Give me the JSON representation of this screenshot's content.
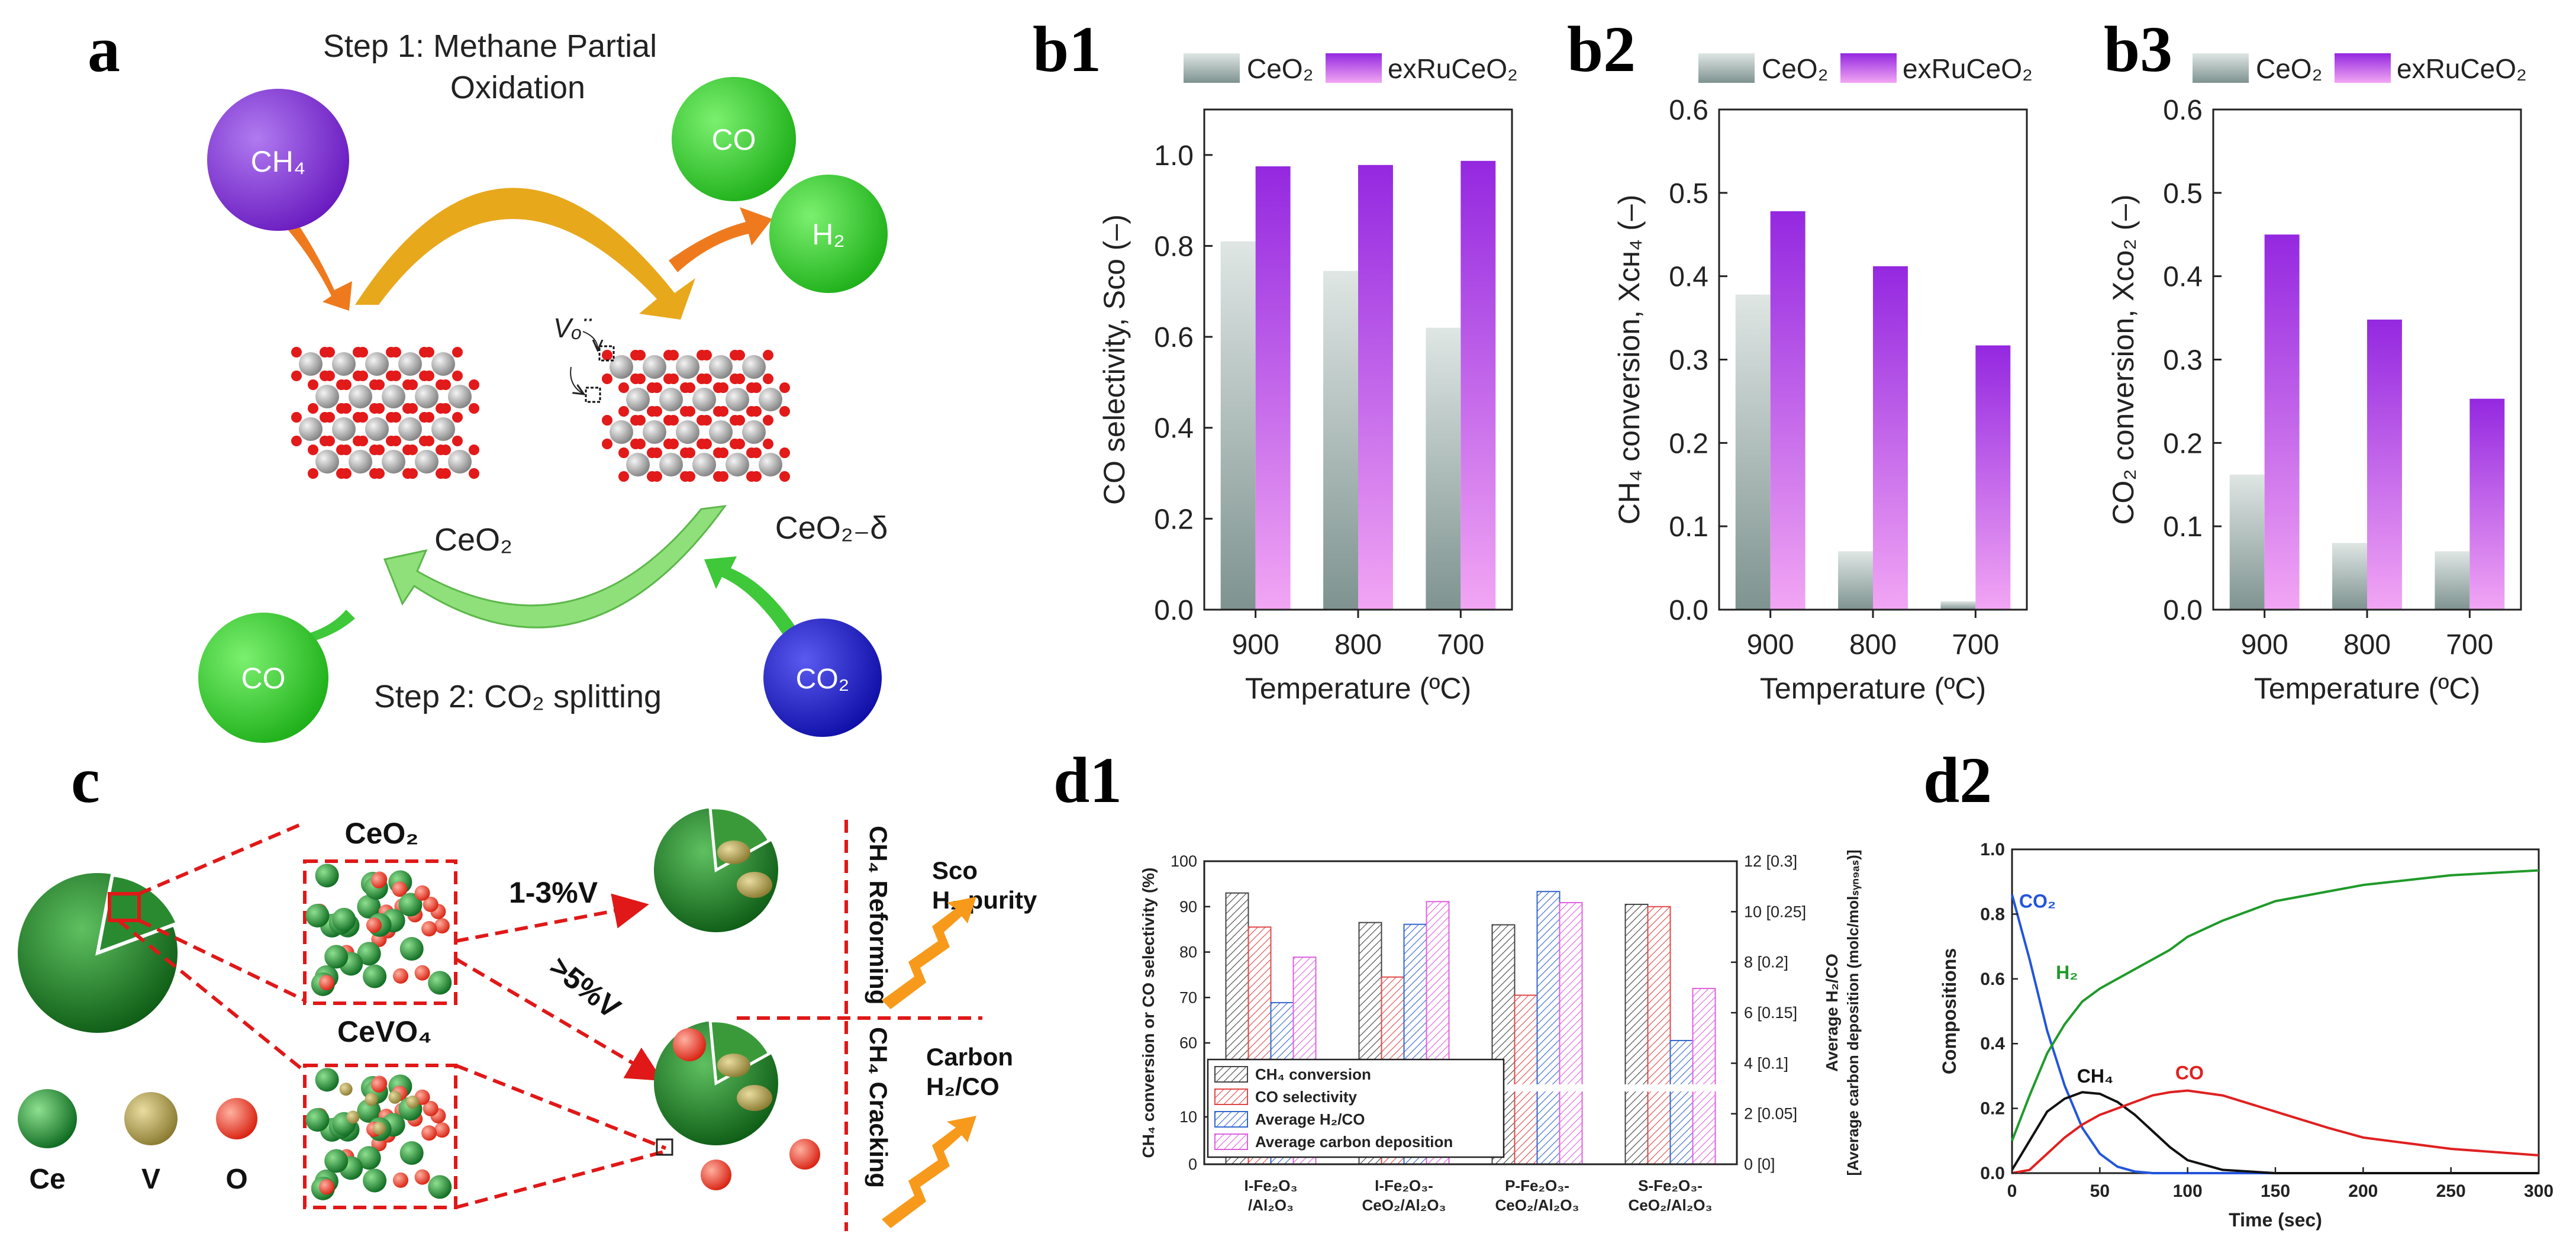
{
  "panels": {
    "a": "a",
    "b1": "b1",
    "b2": "b2",
    "b3": "b3",
    "c": "c",
    "d1": "d1",
    "d2": "d2"
  },
  "panel_a": {
    "step1_line1": "Step 1: Methane Partial",
    "step1_line2": "Oxidation",
    "step2": "Step 2: CO₂ splitting",
    "ch4": "CH₄",
    "co_top": "CO",
    "h2": "H₂",
    "co_bottom": "CO",
    "co2": "CO₂",
    "ceo2": "CeO₂",
    "ceo2_delta": "CeO₂₋δ",
    "vacancy": "Vₒ¨",
    "colors": {
      "ch4": "#7a2fd0",
      "green": "#3ec83a",
      "co2": "#2a2acb",
      "orange": "#ef7a1e",
      "gold": "#e8a81c",
      "lightgreen": "#8fe07a"
    }
  },
  "panel_c": {
    "ceo2": "CeO₂",
    "cevo4": "CeVO₄",
    "low_v": "1-3%V",
    "high_v": ">5%V",
    "reforming": "CH₄ Reforming",
    "cracking": "CH₄ Cracking",
    "sco": "Sᴄᴏ",
    "h2_purity": "H₂ purity",
    "carbon": "Carbon",
    "h2co": "H₂/CO",
    "legend": [
      "Ce",
      "V",
      "O"
    ]
  },
  "chart_data": [
    {
      "id": "b1",
      "type": "bar",
      "categories": [
        "900",
        "800",
        "700"
      ],
      "series": [
        {
          "name": "CeO₂",
          "values": [
            0.81,
            0.745,
            0.62
          ]
        },
        {
          "name": "exRuCeO₂",
          "values": [
            0.975,
            0.978,
            0.987
          ]
        }
      ],
      "ylim": [
        0,
        1.1
      ],
      "yticks": [
        "0.0",
        "0.2",
        "0.4",
        "0.6",
        "0.8",
        "1.0"
      ],
      "xlabel": "Temperature (ºC)",
      "ylabel": "CO selectivity, Sᴄᴏ (–)",
      "legend": "top"
    },
    {
      "id": "b2",
      "type": "bar",
      "categories": [
        "900",
        "800",
        "700"
      ],
      "series": [
        {
          "name": "CeO₂",
          "values": [
            0.378,
            0.07,
            0.01
          ]
        },
        {
          "name": "exRuCeO₂",
          "values": [
            0.478,
            0.412,
            0.317
          ]
        }
      ],
      "ylim": [
        0,
        0.6
      ],
      "yticks": [
        "0.0",
        "0.1",
        "0.2",
        "0.3",
        "0.4",
        "0.5",
        "0.6"
      ],
      "xlabel": "Temperature (ºC)",
      "ylabel": "CH₄ conversion, Xᴄʜ₄ (–)",
      "legend": "top"
    },
    {
      "id": "b3",
      "type": "bar",
      "categories": [
        "900",
        "800",
        "700"
      ],
      "series": [
        {
          "name": "CeO₂",
          "values": [
            0.162,
            0.08,
            0.07
          ]
        },
        {
          "name": "exRuCeO₂",
          "values": [
            0.45,
            0.348,
            0.253
          ]
        }
      ],
      "ylim": [
        0,
        0.6
      ],
      "yticks": [
        "0.0",
        "0.1",
        "0.2",
        "0.3",
        "0.4",
        "0.5",
        "0.6"
      ],
      "xlabel": "Temperature (ºC)",
      "ylabel": "CO₂ conversion, Xᴄᴏ₂ (–)",
      "legend": "top"
    },
    {
      "id": "d1",
      "type": "bar",
      "categories": [
        "I-Fe₂O₃\n/Al₂O₃",
        "I-Fe₂O₃-\nCeO₂/Al₂O₃",
        "P-Fe₂O₃-\nCeO₂/Al₂O₃",
        "S-Fe₂O₃-\nCeO₂/Al₂O₃"
      ],
      "series": [
        {
          "name": "CH₄ conversion",
          "values": [
            93,
            86.5,
            86,
            90.5
          ]
        },
        {
          "name": "CO selectivity",
          "values": [
            85.5,
            74.5,
            70.5,
            90
          ]
        },
        {
          "name": "Average H₂/CO",
          "values": [
            6.4,
            9.5,
            10.8,
            4.9
          ]
        },
        {
          "name": "Average carbon deposition",
          "values": [
            0.205,
            0.26,
            0.259,
            0.174
          ]
        }
      ],
      "ylim_left": [
        0,
        100
      ],
      "yticks_left": [
        "0",
        "10",
        "60",
        "70",
        "80",
        "90",
        "100"
      ],
      "ylim_right": [
        0,
        12
      ],
      "yticks_right": [
        "0 [0]",
        "2 [0.05]",
        "4 [0.1]",
        "6 [0.15]",
        "8 [0.2]",
        "10 [0.25]",
        "12 [0.3]"
      ],
      "ylabel_left": "CH₄ conversion or CO selectivity (%)",
      "ylabel_right_1": "Average H₂/CO",
      "ylabel_right_2": "[Average carbon deposition (molᴄ/molₛᵧₙ₉ₐₛ)]",
      "legend": "bottom-left"
    },
    {
      "id": "d2",
      "type": "line",
      "x": [
        0,
        10,
        20,
        30,
        40,
        50,
        60,
        70,
        80,
        90,
        100,
        120,
        150,
        180,
        200,
        250,
        300
      ],
      "series": [
        {
          "name": "CO₂",
          "values": [
            0.86,
            0.66,
            0.44,
            0.27,
            0.14,
            0.06,
            0.02,
            0.005,
            0,
            0,
            0,
            0,
            0,
            0,
            0,
            0,
            0
          ]
        },
        {
          "name": "H₂",
          "values": [
            0.1,
            0.24,
            0.37,
            0.46,
            0.53,
            0.57,
            0.6,
            0.63,
            0.66,
            0.69,
            0.73,
            0.78,
            0.84,
            0.87,
            0.89,
            0.92,
            0.935
          ]
        },
        {
          "name": "CH₄",
          "values": [
            0.01,
            0.1,
            0.19,
            0.23,
            0.25,
            0.245,
            0.22,
            0.18,
            0.13,
            0.08,
            0.04,
            0.01,
            0,
            0,
            0,
            0,
            0
          ]
        },
        {
          "name": "CO",
          "values": [
            0,
            0.01,
            0.06,
            0.11,
            0.15,
            0.18,
            0.2,
            0.22,
            0.24,
            0.25,
            0.255,
            0.24,
            0.19,
            0.14,
            0.11,
            0.075,
            0.055
          ]
        }
      ],
      "xlim": [
        0,
        300
      ],
      "xticks": [
        "0",
        "50",
        "100",
        "150",
        "200",
        "250",
        "300"
      ],
      "ylim": [
        0,
        1.0
      ],
      "yticks": [
        "0.0",
        "0.2",
        "0.4",
        "0.6",
        "0.8",
        "1.0"
      ],
      "xlabel": "Time (sec)",
      "ylabel": "Compositions",
      "colors": [
        "#2255dd",
        "#1f9a2a",
        "#111111",
        "#e02020"
      ]
    }
  ]
}
